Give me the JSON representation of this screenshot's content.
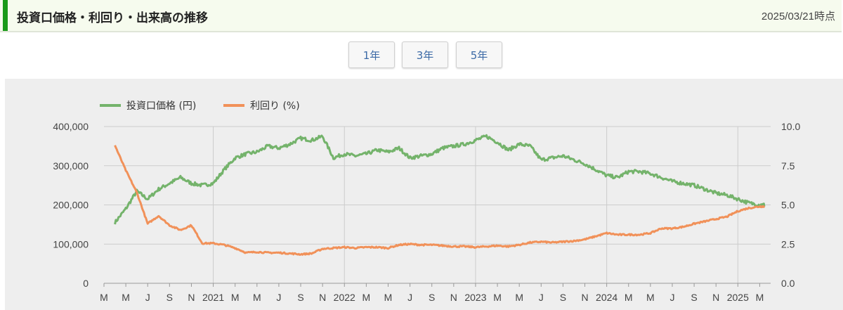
{
  "header": {
    "title": "投資口価格・利回り・出来高の推移",
    "date": "2025/03/21時点"
  },
  "range_buttons": [
    "1年",
    "3年",
    "5年"
  ],
  "colors": {
    "price": "#74b36b",
    "yield": "#f19159",
    "accent": "#1a9a1a",
    "button_text": "#3c6aa6"
  },
  "chart_data": {
    "type": "line",
    "legend_position": "top-left",
    "grid": true,
    "x_tick_labels": [
      "M",
      "M",
      "J",
      "S",
      "N",
      "2021",
      "M",
      "M",
      "J",
      "S",
      "N",
      "2022",
      "M",
      "M",
      "J",
      "S",
      "N",
      "2023",
      "M",
      "M",
      "J",
      "S",
      "N",
      "2024",
      "M",
      "M",
      "J",
      "S",
      "N",
      "2025",
      "M"
    ],
    "y_left": {
      "ticks": [
        "0",
        "100,000",
        "200,000",
        "300,000",
        "400,000"
      ],
      "range": [
        0,
        400000
      ]
    },
    "y_right": {
      "ticks": [
        "0.0",
        "2.5",
        "5.0",
        "7.5",
        "10.0"
      ],
      "range": [
        0,
        10
      ]
    },
    "series": [
      {
        "name": "投資口価格 (円)",
        "axis": "left",
        "x": [
          "2020-04",
          "2020-05",
          "2020-06",
          "2020-07",
          "2020-08",
          "2020-09",
          "2020-10",
          "2020-11",
          "2020-12",
          "2021-01",
          "2021-02",
          "2021-03",
          "2021-04",
          "2021-05",
          "2021-06",
          "2021-07",
          "2021-08",
          "2021-09",
          "2021-10",
          "2021-11",
          "2021-12",
          "2022-01",
          "2022-02",
          "2022-03",
          "2022-04",
          "2022-05",
          "2022-06",
          "2022-07",
          "2022-08",
          "2022-09",
          "2022-10",
          "2022-11",
          "2022-12",
          "2023-01",
          "2023-02",
          "2023-03",
          "2023-04",
          "2023-05",
          "2023-06",
          "2023-07",
          "2023-08",
          "2023-09",
          "2023-10",
          "2023-11",
          "2023-12",
          "2024-01",
          "2024-02",
          "2024-03",
          "2024-04",
          "2024-05",
          "2024-06",
          "2024-07",
          "2024-08",
          "2024-09",
          "2024-10",
          "2024-11",
          "2024-12",
          "2025-01",
          "2025-02",
          "2025-03"
        ],
        "values": [
          155000,
          190000,
          235000,
          215000,
          240000,
          255000,
          270000,
          255000,
          250000,
          255000,
          290000,
          320000,
          330000,
          335000,
          350000,
          345000,
          355000,
          370000,
          365000,
          375000,
          320000,
          330000,
          325000,
          330000,
          340000,
          335000,
          345000,
          320000,
          325000,
          330000,
          345000,
          350000,
          355000,
          365000,
          375000,
          360000,
          340000,
          355000,
          350000,
          315000,
          320000,
          325000,
          315000,
          305000,
          290000,
          275000,
          270000,
          285000,
          285000,
          280000,
          270000,
          260000,
          255000,
          250000,
          240000,
          230000,
          225000,
          215000,
          205000,
          200000
        ]
      },
      {
        "name": "利回り (%)",
        "axis": "right",
        "x": [
          "2020-04",
          "2020-05",
          "2020-06",
          "2020-07",
          "2020-08",
          "2020-09",
          "2020-10",
          "2020-11",
          "2020-12",
          "2021-01",
          "2021-02",
          "2021-03",
          "2021-04",
          "2021-05",
          "2021-06",
          "2021-07",
          "2021-08",
          "2021-09",
          "2021-10",
          "2021-11",
          "2021-12",
          "2022-01",
          "2022-02",
          "2022-03",
          "2022-04",
          "2022-05",
          "2022-06",
          "2022-07",
          "2022-08",
          "2022-09",
          "2022-10",
          "2022-11",
          "2022-12",
          "2023-01",
          "2023-02",
          "2023-03",
          "2023-04",
          "2023-05",
          "2023-06",
          "2023-07",
          "2023-08",
          "2023-09",
          "2023-10",
          "2023-11",
          "2023-12",
          "2024-01",
          "2024-02",
          "2024-03",
          "2024-04",
          "2024-05",
          "2024-06",
          "2024-07",
          "2024-08",
          "2024-09",
          "2024-10",
          "2024-11",
          "2024-12",
          "2025-01",
          "2025-02",
          "2025-03"
        ],
        "values": [
          8.8,
          7.2,
          5.8,
          3.8,
          4.3,
          3.7,
          3.4,
          3.7,
          2.55,
          2.55,
          2.45,
          2.25,
          1.95,
          2.0,
          1.95,
          1.95,
          1.9,
          1.85,
          1.9,
          2.2,
          2.25,
          2.3,
          2.25,
          2.3,
          2.3,
          2.25,
          2.45,
          2.5,
          2.45,
          2.45,
          2.4,
          2.35,
          2.35,
          2.3,
          2.35,
          2.4,
          2.35,
          2.45,
          2.6,
          2.65,
          2.6,
          2.65,
          2.7,
          2.8,
          3.0,
          3.2,
          3.1,
          3.1,
          3.1,
          3.2,
          3.5,
          3.5,
          3.6,
          3.8,
          3.95,
          4.1,
          4.25,
          4.6,
          4.8,
          4.9
        ]
      }
    ]
  }
}
